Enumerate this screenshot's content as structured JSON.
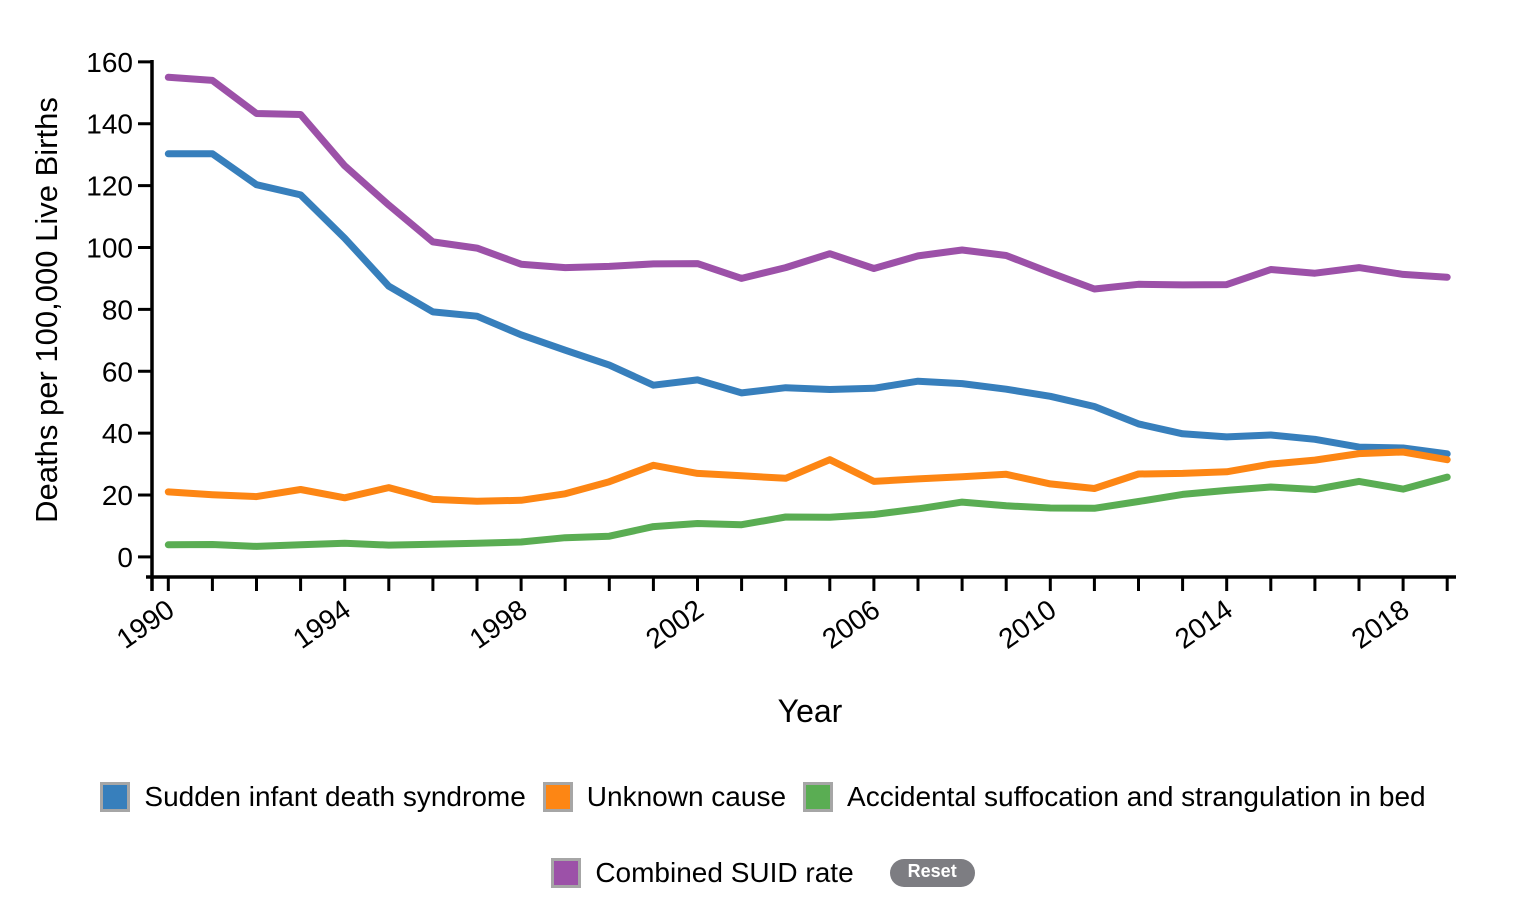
{
  "chart_data": {
    "type": "line",
    "title": "",
    "xlabel": "Year",
    "ylabel": "Deaths per 100,000 Live Births",
    "x": [
      1990,
      1991,
      1992,
      1993,
      1994,
      1995,
      1996,
      1997,
      1998,
      1999,
      2000,
      2001,
      2002,
      2003,
      2004,
      2005,
      2006,
      2007,
      2008,
      2009,
      2010,
      2011,
      2012,
      2013,
      2014,
      2015,
      2016,
      2017,
      2018,
      2019
    ],
    "xlim": [
      1990,
      2019
    ],
    "ylim": [
      0,
      160
    ],
    "y_ticks": [
      0,
      20,
      40,
      60,
      80,
      100,
      120,
      140,
      160
    ],
    "x_tick_labels": [
      "1990",
      "1994",
      "1998",
      "2002",
      "2006",
      "2010",
      "2014",
      "2018"
    ],
    "x_tick_label_step": 4,
    "grid": false,
    "legend_position": "bottom",
    "series": [
      {
        "name": "Sudden infant death syndrome",
        "color": "#377fbc",
        "values": [
          130.3,
          130.3,
          120.3,
          117.0,
          103.0,
          87.5,
          79.2,
          77.8,
          71.8,
          66.8,
          62.0,
          55.5,
          57.2,
          53.0,
          54.7,
          54.1,
          54.5,
          56.8,
          56.0,
          54.2,
          51.9,
          48.6,
          43.0,
          39.8,
          38.8,
          39.4,
          38.0,
          35.5,
          35.2,
          33.3
        ]
      },
      {
        "name": "Unknown cause",
        "color": "#fd8614",
        "values": [
          21.0,
          20.1,
          19.5,
          21.8,
          19.1,
          22.4,
          18.6,
          18.0,
          18.3,
          20.4,
          24.3,
          29.6,
          27.0,
          26.2,
          25.4,
          31.4,
          24.4,
          25.2,
          25.9,
          26.7,
          23.6,
          22.1,
          26.8,
          27.0,
          27.5,
          30.0,
          31.3,
          33.4,
          33.9,
          31.4
        ]
      },
      {
        "name": "Accidental suffocation and strangulation in bed",
        "color": "#5aad53",
        "values": [
          3.9,
          4.0,
          3.4,
          3.9,
          4.4,
          3.8,
          4.1,
          4.4,
          4.8,
          6.2,
          6.7,
          9.8,
          10.8,
          10.4,
          12.9,
          12.8,
          13.7,
          15.5,
          17.7,
          16.5,
          15.8,
          15.7,
          17.9,
          20.2,
          21.5,
          22.6,
          21.8,
          24.4,
          21.9,
          25.8
        ]
      },
      {
        "name": "Combined SUID rate",
        "color": "#9c51a8",
        "values": [
          155.0,
          154.0,
          143.3,
          143.0,
          126.4,
          113.7,
          101.8,
          99.8,
          94.6,
          93.5,
          93.9,
          94.7,
          94.8,
          90.0,
          93.5,
          98.0,
          93.2,
          97.3,
          99.2,
          97.4,
          91.9,
          86.6,
          88.1,
          87.9,
          88.0,
          92.9,
          91.7,
          93.5,
          91.3,
          90.4
        ]
      }
    ]
  },
  "legend": {
    "rows": [
      [
        "Sudden infant death syndrome",
        "Unknown cause",
        "Accidental suffocation and strangulation in bed"
      ],
      [
        "Combined SUID rate"
      ]
    ],
    "items": [
      {
        "label": "Sudden infant death syndrome",
        "color": "#377fbc"
      },
      {
        "label": "Unknown cause",
        "color": "#fd8614"
      },
      {
        "label": "Accidental suffocation and strangulation in bed",
        "color": "#5aad53"
      },
      {
        "label": "Combined SUID rate",
        "color": "#9c51a8"
      }
    ],
    "swatch_border_color": "#a6a6a6",
    "reset_label": "Reset",
    "reset_bg_color": "#7d7d82"
  },
  "axes": {
    "color": "#000000",
    "y_axis_title": "Deaths per 100,000 Live Births",
    "x_axis_title": "Year",
    "y_tick_labels": [
      "0",
      "20",
      "40",
      "60",
      "80",
      "100",
      "120",
      "140",
      "160"
    ]
  }
}
